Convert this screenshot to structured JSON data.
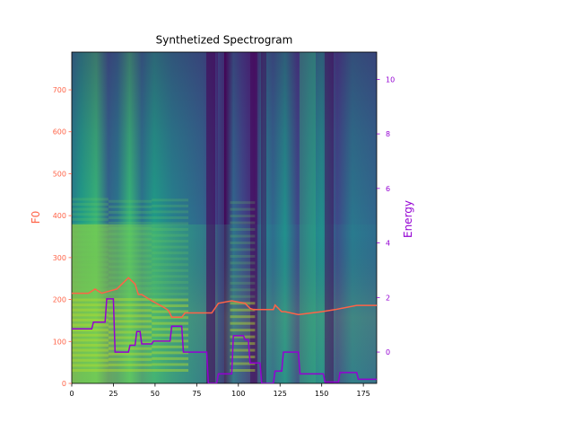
{
  "chart_data": {
    "type": "heatmap",
    "title": "Synthetized Spectrogram",
    "xlabel": "",
    "ylabel_left": "F0",
    "ylabel_right": "Energy",
    "xlim": [
      0,
      183
    ],
    "ylim_left": [
      0,
      790
    ],
    "ylim_right": [
      -1.15,
      11
    ],
    "x_ticks": [
      0,
      25,
      50,
      75,
      100,
      125,
      150,
      175
    ],
    "left_ticks": [
      0,
      100,
      200,
      300,
      400,
      500,
      600,
      700
    ],
    "right_ticks": [
      0,
      2,
      4,
      6,
      8,
      10
    ],
    "grid": false,
    "colors": {
      "f0": "#ff6347",
      "energy": "#9400d3",
      "left_axis": "#ff6347",
      "right_axis": "#9400d3",
      "colormap": "viridis"
    },
    "series": [
      {
        "name": "F0",
        "axis": "left",
        "x": [
          0,
          10,
          14,
          18,
          27,
          34,
          38,
          40,
          42,
          48,
          55,
          58,
          60,
          66,
          68,
          80,
          84,
          88,
          96,
          104,
          107,
          109,
          121,
          122,
          126,
          128,
          136,
          150,
          158,
          171,
          183
        ],
        "values": [
          215,
          215,
          225,
          215,
          225,
          252,
          237,
          212,
          212,
          197,
          182,
          174,
          158,
          158,
          168,
          168,
          168,
          191,
          197,
          191,
          179,
          176,
          176,
          187,
          171,
          171,
          164,
          171,
          176,
          186,
          186
        ]
      },
      {
        "name": "Energy",
        "axis": "right",
        "x": [
          0,
          12,
          13,
          20,
          21,
          25,
          26,
          34,
          35,
          38,
          39,
          41,
          42,
          48,
          49,
          59,
          60,
          66,
          67,
          81,
          82,
          87,
          88,
          96,
          97,
          103,
          104,
          106,
          107,
          113,
          114,
          121,
          122,
          126,
          127,
          136,
          137,
          151,
          152,
          160,
          161,
          171,
          172,
          183
        ],
        "values": [
          0.85,
          0.85,
          1.1,
          1.1,
          1.95,
          1.95,
          0,
          0,
          0.25,
          0.25,
          0.75,
          0.75,
          0.3,
          0.3,
          0.4,
          0.4,
          0.95,
          0.95,
          0,
          0,
          -1.15,
          -1.15,
          -0.8,
          -0.8,
          0.6,
          0.6,
          0.45,
          0.45,
          -0.4,
          -0.4,
          -1.15,
          -1.15,
          -0.7,
          -0.7,
          0,
          0,
          -0.8,
          -0.8,
          -1.1,
          -1.1,
          -0.75,
          -0.75,
          -1,
          -1
        ]
      }
    ]
  }
}
